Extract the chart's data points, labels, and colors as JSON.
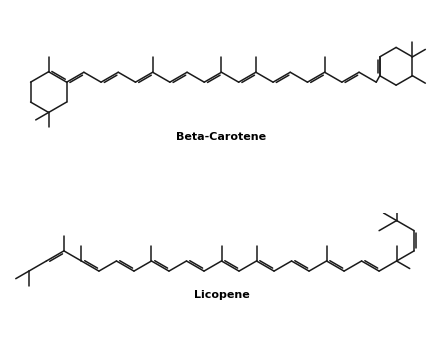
{
  "title1": "Beta-Carotene",
  "title2": "Licopene",
  "bg_color": "#ffffff",
  "line_color": "#1a1a1a",
  "line_width": 1.1,
  "title_fontsize": 8,
  "title_fontweight": "bold",
  "figsize": [
    4.43,
    3.45
  ],
  "dpi": 100
}
